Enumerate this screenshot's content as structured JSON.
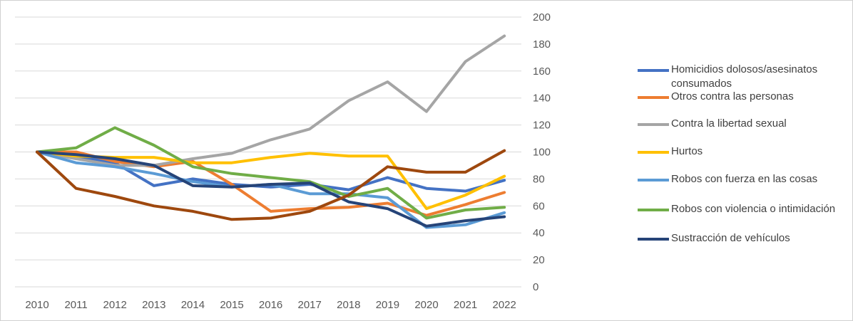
{
  "chart_data": {
    "type": "line",
    "x": [
      2010,
      2011,
      2012,
      2013,
      2014,
      2015,
      2016,
      2017,
      2018,
      2019,
      2020,
      2021,
      2022
    ],
    "ylim": [
      0,
      200
    ],
    "yticks": [
      0,
      20,
      40,
      60,
      80,
      100,
      120,
      140,
      160,
      180,
      200
    ],
    "y_axis_side": "right",
    "grid": true,
    "legend_position": "right",
    "series": [
      {
        "name": "Homicidios dolosos/asesinatos consumados",
        "color": "#4472c4",
        "values": [
          100,
          97,
          92,
          75,
          80,
          76,
          74,
          76,
          72,
          81,
          73,
          71,
          79
        ]
      },
      {
        "name": "Otros contra las personas",
        "color": "#ed7d31",
        "values": [
          100,
          100,
          93,
          89,
          93,
          76,
          56,
          58,
          59,
          62,
          53,
          61,
          70
        ]
      },
      {
        "name": "Contra la libertad sexual",
        "color": "#a5a5a5",
        "values": [
          100,
          95,
          90,
          90,
          95,
          99,
          109,
          117,
          138,
          152,
          130,
          167,
          186
        ]
      },
      {
        "name": "Hurtos",
        "color": "#ffc000",
        "values": [
          100,
          97,
          96,
          96,
          92,
          92,
          96,
          99,
          97,
          97,
          58,
          68,
          82
        ]
      },
      {
        "name": "Robos con fuerza en las cosas",
        "color": "#5b9bd5",
        "values": [
          100,
          92,
          89,
          84,
          78,
          74,
          76,
          69,
          69,
          66,
          44,
          46,
          55
        ]
      },
      {
        "name": "Robos con violencia o intimidación",
        "color": "#70ad47",
        "values": [
          100,
          103,
          118,
          105,
          89,
          84,
          81,
          78,
          67,
          73,
          51,
          57,
          59
        ]
      },
      {
        "name": "Sustracción de vehículos",
        "color": "#264478",
        "values": [
          100,
          98,
          95,
          90,
          75,
          74,
          76,
          77,
          63,
          58,
          45,
          49,
          52
        ]
      },
      {
        "name": "",
        "color": "#9e480e",
        "values": [
          100,
          73,
          67,
          60,
          56,
          50,
          51,
          56,
          68,
          89,
          85,
          85,
          101
        ]
      }
    ]
  }
}
